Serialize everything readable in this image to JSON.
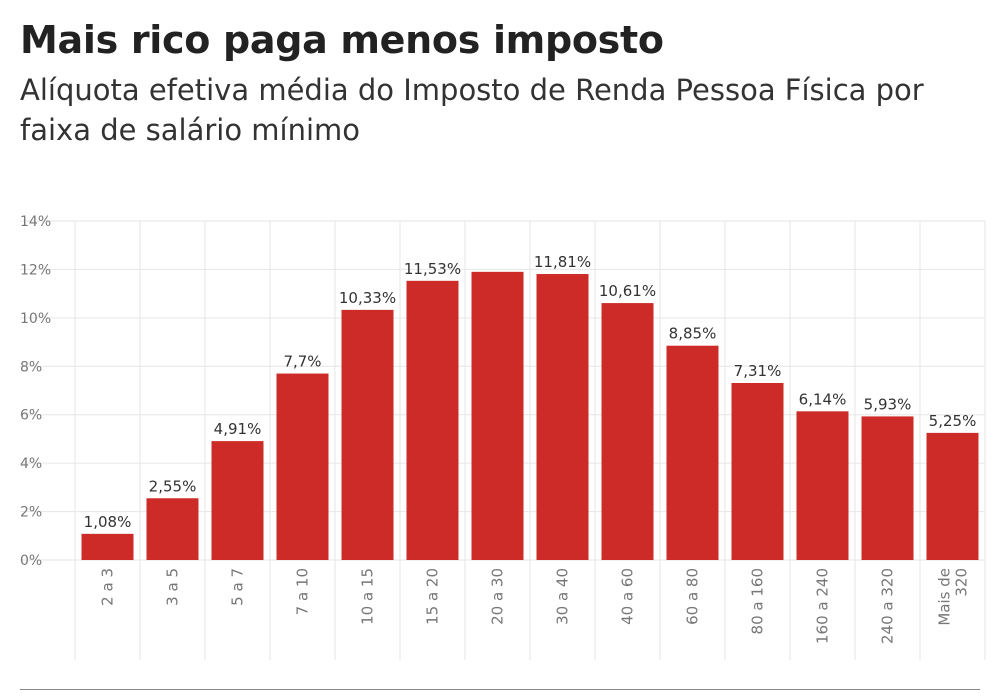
{
  "title": "Mais rico paga menos imposto",
  "subtitle": "Alíquota efetiva média do Imposto de Renda Pessoa Física por faixa de salário mínimo",
  "colors": {
    "bar": "#cc2b27",
    "grid": "#e6e6e6",
    "tick_text": "#777777",
    "label_text": "#333333"
  },
  "chart_data": {
    "type": "bar",
    "categories": [
      "2 a 3",
      "3 a 5",
      "5 a 7",
      "7 a 10",
      "10 a 15",
      "15 a 20",
      "20 a 30",
      "30 a 40",
      "40 a 60",
      "60 a 80",
      "80 a 160",
      "160 a 240",
      "240 a 320",
      "Mais de 320"
    ],
    "values": [
      1.08,
      2.55,
      4.91,
      7.7,
      10.33,
      11.53,
      11.9,
      11.81,
      10.61,
      8.85,
      7.31,
      6.14,
      5.93,
      5.25
    ],
    "data_labels": [
      "1,08%",
      "2,55%",
      "4,91%",
      "7,7%",
      "10,33%",
      "11,53%",
      "",
      "11,81%",
      "10,61%",
      "8,85%",
      "7,31%",
      "6,14%",
      "5,93%",
      "5,25%"
    ],
    "y_ticks": [
      0,
      2,
      4,
      6,
      8,
      10,
      12,
      14
    ],
    "y_tick_labels": [
      "0%",
      "2%",
      "4%",
      "6%",
      "8%",
      "10%",
      "12%",
      "14%"
    ],
    "ylim": [
      0,
      14
    ],
    "grid": true,
    "xlabel": "",
    "ylabel": ""
  }
}
